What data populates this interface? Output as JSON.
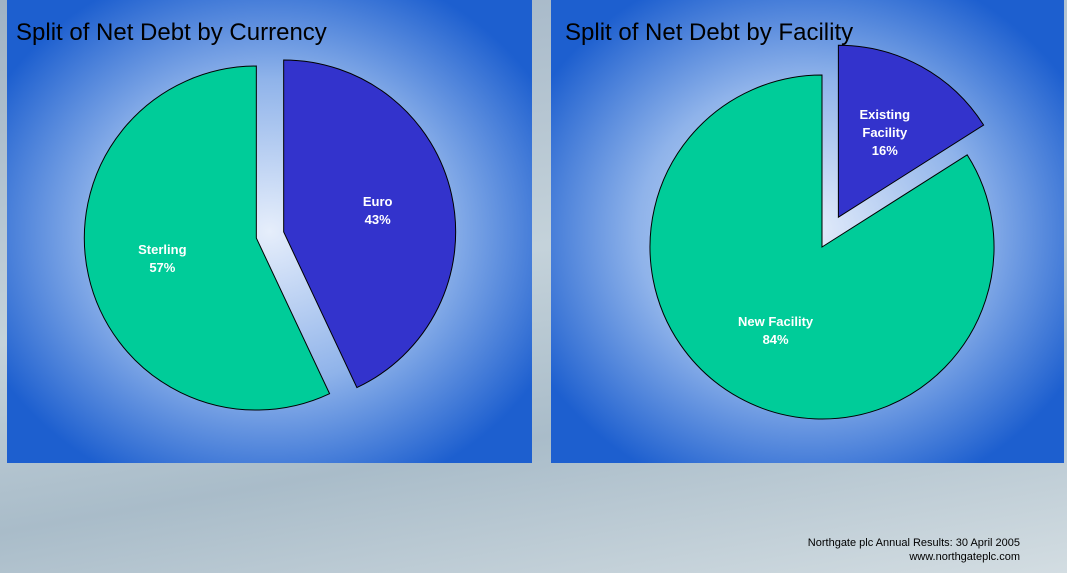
{
  "chart_data": [
    {
      "type": "pie",
      "title": "Split of Net Debt by Currency",
      "categories": [
        "Euro",
        "Sterling"
      ],
      "values": [
        43,
        57
      ],
      "value_labels": [
        "43%",
        "57%"
      ],
      "colors": [
        "#3333cc",
        "#00cc99"
      ]
    },
    {
      "type": "pie",
      "title": "Split of Net Debt by Facility",
      "categories": [
        "Existing Facility",
        "New Facility"
      ],
      "values": [
        16,
        84
      ],
      "value_labels": [
        "16%",
        "84%"
      ],
      "colors": [
        "#3333cc",
        "#00cc99"
      ]
    }
  ],
  "footer": [
    "Northgate plc Annual Results: 30 April 2005",
    "www.northgateplc.com"
  ]
}
